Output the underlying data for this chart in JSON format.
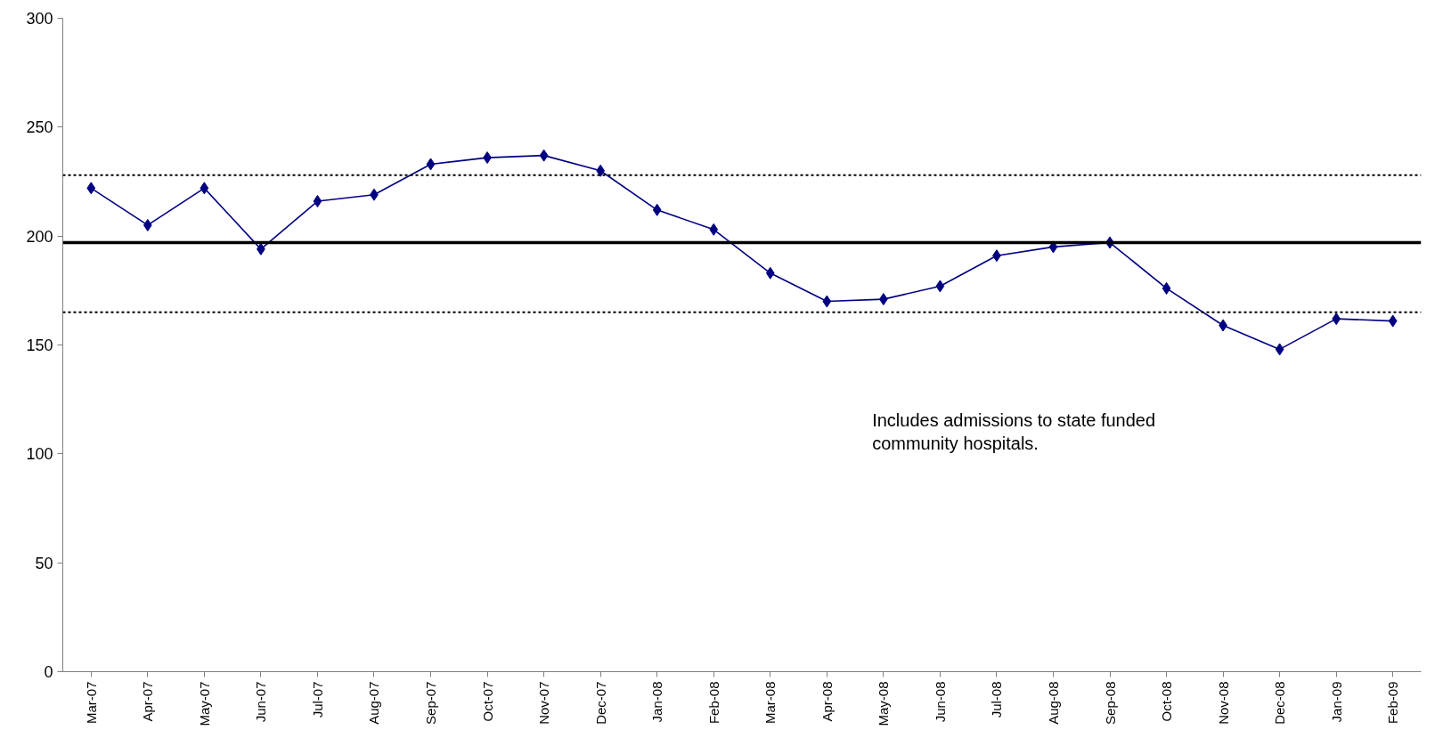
{
  "chart_data": {
    "type": "line",
    "categories": [
      "Mar-07",
      "Apr-07",
      "May-07",
      "Jun-07",
      "Jul-07",
      "Aug-07",
      "Sep-07",
      "Oct-07",
      "Nov-07",
      "Dec-07",
      "Jan-08",
      "Feb-08",
      "Mar-08",
      "Apr-08",
      "May-08",
      "Jun-08",
      "Jul-08",
      "Aug-08",
      "Sep-08",
      "Oct-08",
      "Nov-08",
      "Dec-08",
      "Jan-09",
      "Feb-09"
    ],
    "series": [
      {
        "color": "#000080",
        "values": [
          222,
          205,
          222,
          194,
          216,
          219,
          233,
          236,
          237,
          230,
          212,
          203,
          183,
          170,
          171,
          177,
          191,
          195,
          197,
          176,
          159,
          148,
          162,
          161
        ]
      }
    ],
    "ylim": [
      0,
      300
    ],
    "yticks": [
      0,
      50,
      100,
      150,
      200,
      250,
      300
    ],
    "ref_lines": [
      {
        "axis": "y",
        "value": 197,
        "color": "#000000",
        "line_style": "solid"
      },
      {
        "axis": "y",
        "value": 228,
        "color": "#000000",
        "line_style": "dotted"
      },
      {
        "axis": "y",
        "value": 165,
        "color": "#000000",
        "line_style": "dotted"
      }
    ],
    "annotations": [
      "Includes admissions to state funded\ncommunity hospitals."
    ],
    "marker": "diamond",
    "line_style": "solid",
    "grid": false
  }
}
